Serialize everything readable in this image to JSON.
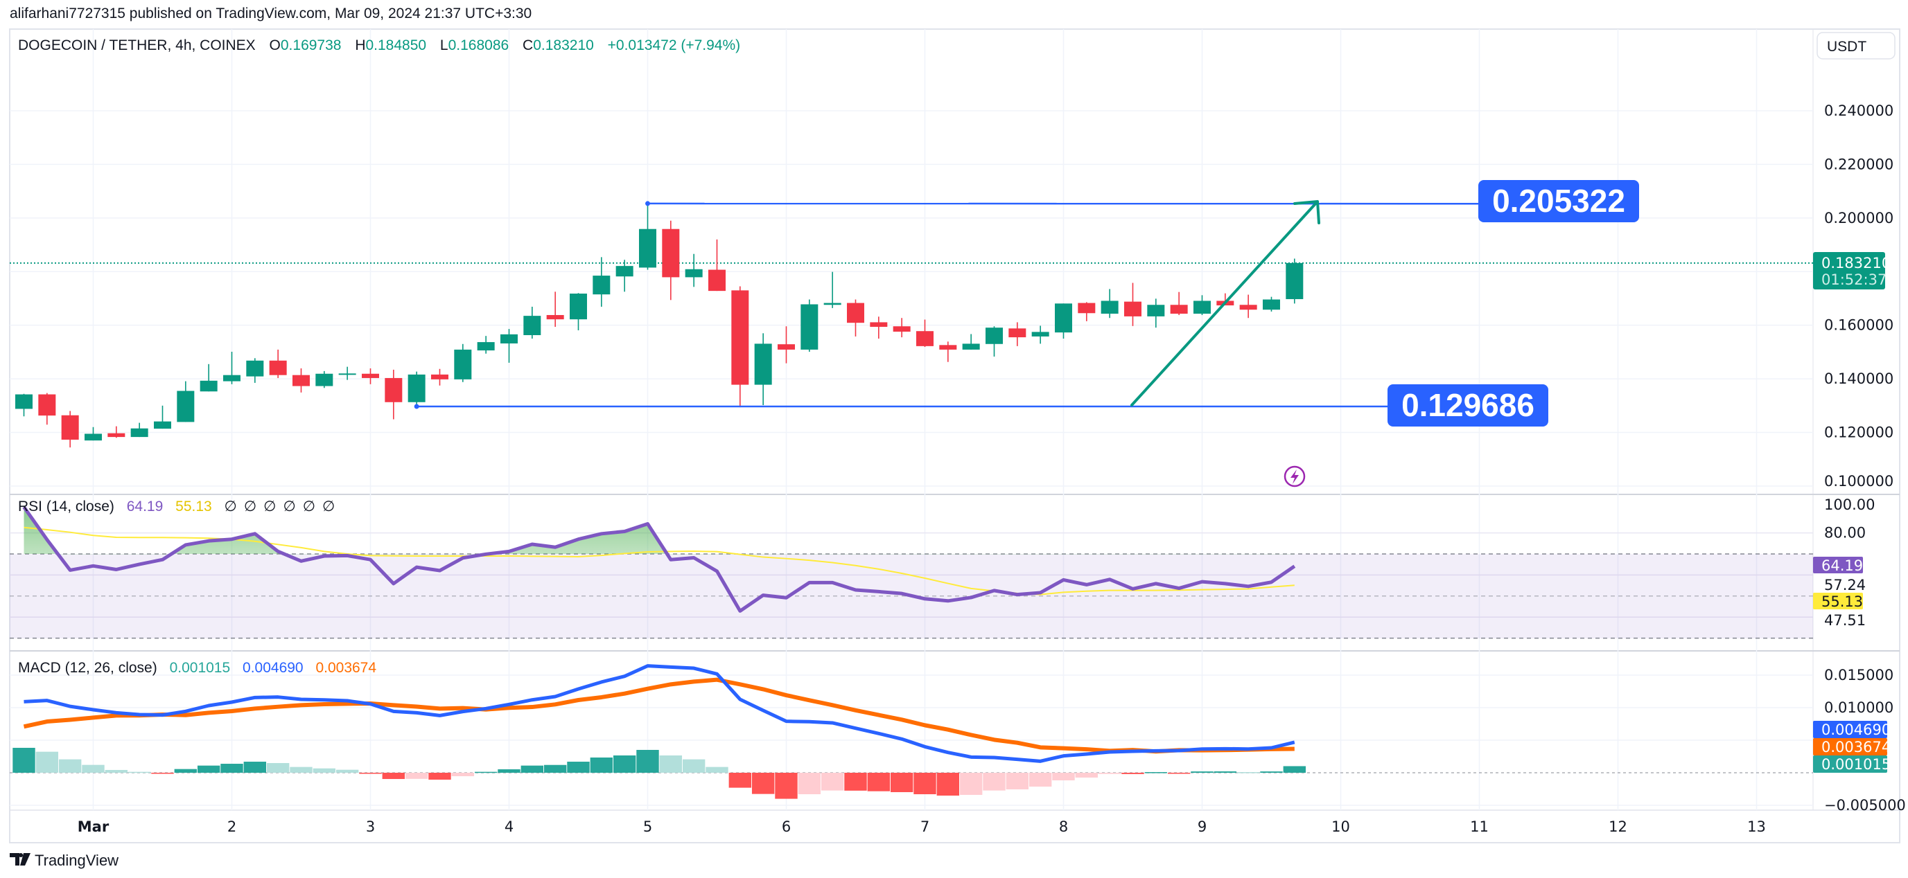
{
  "publish_line": "alifarhani7727315 published on TradingView.com, Mar 09, 2024 21:37 UTC+3:30",
  "legend": {
    "symbol": "DOGECOIN / TETHER, 4h, COINEX",
    "o_label": "O",
    "o": "0.169738",
    "h_label": "H",
    "h": "0.184850",
    "l_label": "L",
    "l": "0.168086",
    "c_label": "C",
    "c": "0.183210",
    "change": "+0.013472 (+7.94%)"
  },
  "currency_button": "USDT",
  "price_axis": [
    "0.240000",
    "0.220000",
    "0.200000",
    "0.160000",
    "0.140000",
    "0.120000",
    "0.100000"
  ],
  "price_axis_values": [
    0.24,
    0.22,
    0.2,
    0.16,
    0.14,
    0.12,
    0.1
  ],
  "last_price": {
    "value": "0.183210",
    "countdown": "01:52:37",
    "price": 0.18321
  },
  "levels": {
    "upper": "0.205322",
    "upper_value": 0.205322,
    "lower": "0.129686",
    "lower_value": 0.129686
  },
  "time_axis": [
    "Mar",
    "2",
    "3",
    "4",
    "5",
    "6",
    "7",
    "8",
    "9",
    "10",
    "11",
    "12",
    "13"
  ],
  "colors": {
    "up": "#089981",
    "down": "#f23645",
    "level": "#2962ff",
    "arrow": "#089981",
    "rsi": "#7e57c2",
    "rsi_ma": "#ffeb3b",
    "macd": "#2962ff",
    "signal": "#ff6d00",
    "hist_up_strong": "#26a69a",
    "hist_up_weak": "#b2dfdb",
    "hist_dn_strong": "#ff5252",
    "hist_dn_weak": "#ffcdd2"
  },
  "rsi": {
    "title": "RSI (14, close)",
    "value": "64.19",
    "ma_value": "55.13",
    "na": [
      "∅",
      "∅",
      "∅",
      "∅",
      "∅",
      "∅"
    ],
    "axis": [
      "80.00",
      "57.24",
      "47.51"
    ],
    "axis_values": [
      80,
      57.24,
      47.51
    ],
    "top_label": "100.00"
  },
  "macd": {
    "title": "MACD (12, 26, close)",
    "hist_value": "0.001015",
    "macd_value": "0.004690",
    "signal_value": "0.003674",
    "axis": [
      "0.015000",
      "0.010000",
      "−0.005000"
    ],
    "axis_values": [
      0.015,
      0.01,
      -0.005
    ]
  },
  "brand": "TradingView",
  "chart_data": {
    "type": "candlestick",
    "title": "DOGECOIN / TETHER, 4h, COINEX",
    "x_start": "Mar 1 2024 00:00 minus 3 bars (4h)",
    "ohlc": [
      [
        0.1288,
        0.1344,
        0.126,
        0.1342
      ],
      [
        0.1342,
        0.1347,
        0.1229,
        0.1263
      ],
      [
        0.1264,
        0.128,
        0.1144,
        0.1173
      ],
      [
        0.117,
        0.122,
        0.117,
        0.1195
      ],
      [
        0.1197,
        0.1223,
        0.118,
        0.1183
      ],
      [
        0.1183,
        0.1236,
        0.1183,
        0.1215
      ],
      [
        0.1214,
        0.13,
        0.1214,
        0.1241
      ],
      [
        0.1239,
        0.1391,
        0.1239,
        0.1355
      ],
      [
        0.1353,
        0.1455,
        0.1353,
        0.1393
      ],
      [
        0.1391,
        0.1501,
        0.138,
        0.1414
      ],
      [
        0.1409,
        0.1477,
        0.1385,
        0.1468
      ],
      [
        0.1468,
        0.1509,
        0.1403,
        0.1414
      ],
      [
        0.1414,
        0.1439,
        0.1349,
        0.1373
      ],
      [
        0.1373,
        0.1429,
        0.1366,
        0.1419
      ],
      [
        0.1418,
        0.1445,
        0.1396,
        0.142
      ],
      [
        0.1419,
        0.1439,
        0.138,
        0.1403
      ],
      [
        0.1403,
        0.1434,
        0.1249,
        0.1313
      ],
      [
        0.1313,
        0.1427,
        0.1301,
        0.1416
      ],
      [
        0.1416,
        0.1437,
        0.1375,
        0.1398
      ],
      [
        0.1398,
        0.153,
        0.1388,
        0.1509
      ],
      [
        0.1506,
        0.156,
        0.1494,
        0.1537
      ],
      [
        0.1532,
        0.1586,
        0.146,
        0.1566
      ],
      [
        0.1563,
        0.1669,
        0.155,
        0.1635
      ],
      [
        0.1638,
        0.1725,
        0.1594,
        0.1622
      ],
      [
        0.1622,
        0.172,
        0.1581,
        0.1718
      ],
      [
        0.1715,
        0.1854,
        0.1669,
        0.1785
      ],
      [
        0.1782,
        0.1844,
        0.1725,
        0.1821
      ],
      [
        0.1815,
        0.2053,
        0.1807,
        0.1959
      ],
      [
        0.1959,
        0.199,
        0.1694,
        0.1779
      ],
      [
        0.1779,
        0.1866,
        0.1743,
        0.1809
      ],
      [
        0.1807,
        0.192,
        0.1728,
        0.1728
      ],
      [
        0.173,
        0.1745,
        0.1294,
        0.1378
      ],
      [
        0.1378,
        0.157,
        0.1302,
        0.1531
      ],
      [
        0.1529,
        0.1596,
        0.1458,
        0.1509
      ],
      [
        0.1509,
        0.1696,
        0.1501,
        0.1678
      ],
      [
        0.1676,
        0.1799,
        0.1664,
        0.1683
      ],
      [
        0.1683,
        0.1696,
        0.1558,
        0.1609
      ],
      [
        0.1611,
        0.1632,
        0.155,
        0.1594
      ],
      [
        0.1596,
        0.1627,
        0.1555,
        0.1576
      ],
      [
        0.1578,
        0.1621,
        0.1519,
        0.1522
      ],
      [
        0.1526,
        0.1539,
        0.1463,
        0.1509
      ],
      [
        0.1509,
        0.1567,
        0.1509,
        0.1531
      ],
      [
        0.153,
        0.1596,
        0.1483,
        0.1591
      ],
      [
        0.1588,
        0.1611,
        0.1522,
        0.1555
      ],
      [
        0.1558,
        0.1598,
        0.1531,
        0.1575
      ],
      [
        0.1573,
        0.1681,
        0.155,
        0.1681
      ],
      [
        0.1683,
        0.1686,
        0.1615,
        0.1645
      ],
      [
        0.1643,
        0.1735,
        0.1627,
        0.1691
      ],
      [
        0.1688,
        0.1758,
        0.1597,
        0.1633
      ],
      [
        0.1633,
        0.1699,
        0.1591,
        0.1676
      ],
      [
        0.1676,
        0.1724,
        0.1638,
        0.1643
      ],
      [
        0.1643,
        0.1712,
        0.1638,
        0.1691
      ],
      [
        0.1691,
        0.1719,
        0.1674,
        0.1674
      ],
      [
        0.1676,
        0.1714,
        0.1627,
        0.1658
      ],
      [
        0.1658,
        0.1706,
        0.1651,
        0.1696
      ],
      [
        0.169738,
        0.18485,
        0.168086,
        0.18321
      ]
    ],
    "rsi": [
      92.3,
      76.8,
      62.3,
      64.3,
      62.6,
      65.1,
      67.3,
      74.3,
      76.2,
      77.0,
      79.6,
      71.2,
      66.6,
      69.0,
      69.2,
      67.3,
      55.9,
      63.7,
      62.1,
      68.1,
      69.9,
      71.2,
      74.6,
      73.2,
      77.0,
      79.6,
      80.7,
      84.3,
      67.3,
      68.2,
      61.8,
      42.9,
      50.4,
      49.2,
      56.4,
      56.4,
      52.9,
      52.1,
      51.2,
      48.7,
      47.7,
      49.3,
      52.6,
      50.7,
      51.6,
      57.7,
      55.4,
      57.9,
      53.4,
      55.9,
      53.7,
      56.8,
      55.9,
      54.6,
      56.6,
      64.19
    ],
    "rsi_ma": [
      82.6,
      81.5,
      80.3,
      78.8,
      77.9,
      77.8,
      77.8,
      77.7,
      77.5,
      77.0,
      76.0,
      74.5,
      73.0,
      71.2,
      70.0,
      69.2,
      69.1,
      69.0,
      69.0,
      69.0,
      69.0,
      69.0,
      68.9,
      68.8,
      68.7,
      69.3,
      70.2,
      71.0,
      71.2,
      71.3,
      71.1,
      69.8,
      68.5,
      67.8,
      67.0,
      65.9,
      64.5,
      62.8,
      60.8,
      58.5,
      56.0,
      53.6,
      52.4,
      51.3,
      50.7,
      51.8,
      52.3,
      52.7,
      52.7,
      52.7,
      52.8,
      53.0,
      53.2,
      53.4,
      54.3,
      55.13
    ],
    "rsi_bands": [
      70,
      50,
      30
    ],
    "macd": [
      0.01092,
      0.0111,
      0.0102,
      0.00968,
      0.00922,
      0.00894,
      0.00887,
      0.00943,
      0.01032,
      0.01085,
      0.01156,
      0.01163,
      0.01128,
      0.0112,
      0.01106,
      0.01057,
      0.00943,
      0.00922,
      0.00879,
      0.0094,
      0.00986,
      0.0105,
      0.0112,
      0.0117,
      0.01287,
      0.01394,
      0.01482,
      0.01642,
      0.01624,
      0.01606,
      0.01518,
      0.01128,
      0.00957,
      0.00791,
      0.00784,
      0.00766,
      0.00684,
      0.00603,
      0.00518,
      0.004,
      0.00312,
      0.00241,
      0.00234,
      0.00206,
      0.00177,
      0.00259,
      0.00287,
      0.00319,
      0.0033,
      0.00337,
      0.0034,
      0.00365,
      0.00369,
      0.00365,
      0.00383,
      0.00469
    ],
    "histogram": [
      0.00383,
      0.00323,
      0.00206,
      0.00121,
      0.00043,
      0.00014,
      -7e-05,
      0.00057,
      0.0011,
      0.00138,
      0.0017,
      0.00149,
      0.00089,
      0.00067,
      0.00046,
      -7e-05,
      -0.00096,
      -0.00094,
      -0.00106,
      -0.00053,
      0.00014,
      0.00053,
      0.0011,
      0.0012,
      0.0017,
      0.00234,
      0.00266,
      0.00351,
      0.00266,
      0.00206,
      0.00089,
      -0.0023,
      -0.00326,
      -0.004,
      -0.0033,
      -0.00273,
      -0.00275,
      -0.00284,
      -0.00298,
      -0.0033,
      -0.00351,
      -0.0034,
      -0.00273,
      -0.00255,
      -0.00213,
      -0.00117,
      -0.00074,
      -0.00018,
      -0.0002,
      0.0001,
      -7e-05,
      0.0002,
      0.00021,
      0.0001,
      0.0002,
      0.001015
    ],
    "ylim_price": [
      0.1,
      0.25
    ],
    "ylim_rsi": [
      30,
      100
    ],
    "ylim_macd": [
      -0.0065,
      0.017
    ]
  }
}
